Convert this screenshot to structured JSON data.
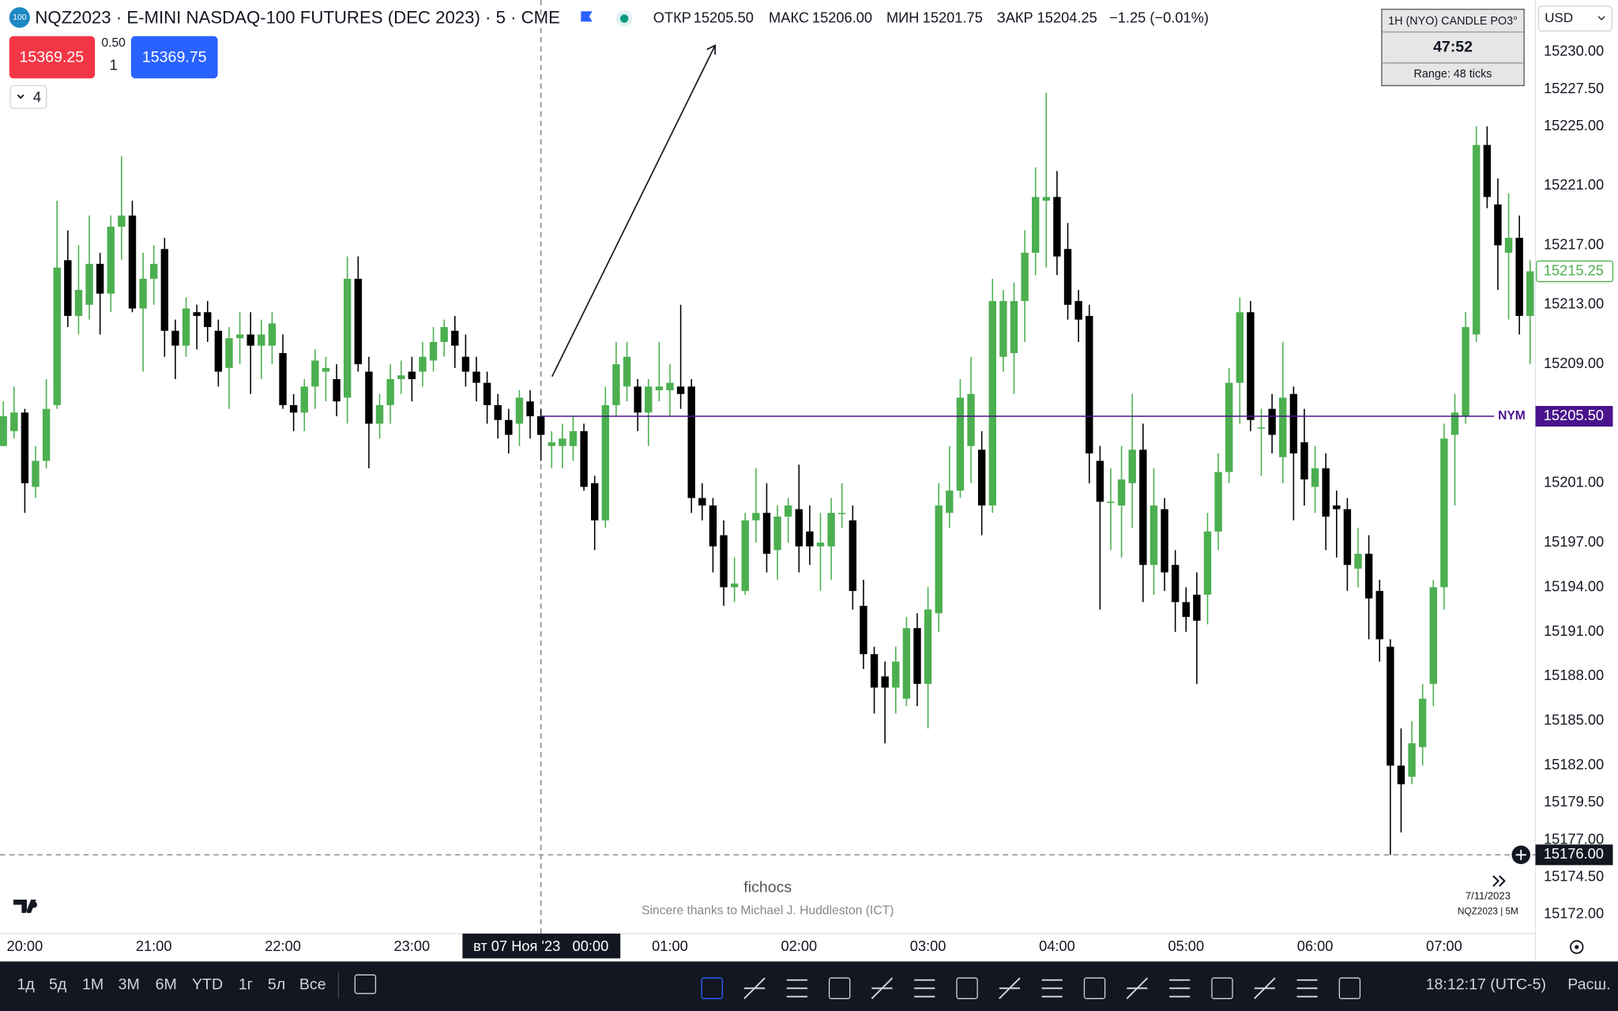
{
  "header": {
    "logo": "100",
    "symbol": "NQZ2023 · E-MINI NASDAQ-100 FUTURES (DEC 2023) · 5 · CME",
    "ohlc": [
      {
        "label": "ОТКР",
        "value": "15205.50"
      },
      {
        "label": "МАКС",
        "value": "15206.00"
      },
      {
        "label": "МИН",
        "value": "15201.75"
      },
      {
        "label": "ЗАКР",
        "value": "15204.25"
      }
    ],
    "change": "−1.25 (−0.01%)"
  },
  "trade": {
    "sell": "15369.25",
    "spread": "0.50",
    "qty": "1",
    "buy": "15369.75"
  },
  "indicators": "4",
  "candle_box": {
    "title": "1H (NYO) CANDLE PO3°",
    "timer": "47:52",
    "range": "Range: 48 ticks"
  },
  "currency": "USD",
  "watermark": {
    "title": "fichocs",
    "subtitle": "Sincere thanks to Michael J. Huddleston (ICT)"
  },
  "corner": {
    "date": "7/11/2023",
    "symbol": "NQZ2023 | 5M"
  },
  "bottom": {
    "ranges": [
      "1д",
      "5д",
      "1М",
      "3М",
      "6М",
      "YTD",
      "1г",
      "5л",
      "Все"
    ],
    "clock": "18:12:17 (UTC-5)",
    "scale": "Расш."
  },
  "chart_data": {
    "type": "candlestick",
    "up_color": "#4caf50",
    "down_color": "#000000",
    "grid": false,
    "categories": [
      null,
      null,
      "20:00",
      null,
      null,
      null,
      null,
      null,
      null,
      null,
      null,
      null,
      null,
      null,
      "21:00",
      null,
      null,
      null,
      null,
      null,
      null,
      null,
      null,
      null,
      null,
      null,
      "22:00",
      null,
      null,
      null,
      null,
      null,
      null,
      null,
      null,
      null,
      null,
      null,
      "23:00",
      null,
      null,
      null,
      null,
      null,
      null,
      null,
      null,
      null,
      null,
      null,
      null,
      null,
      null,
      null,
      null,
      null,
      null,
      null,
      null,
      null,
      null,
      null,
      "01:00",
      null,
      null,
      null,
      null,
      null,
      null,
      null,
      null,
      null,
      null,
      null,
      "02:00",
      null,
      null,
      null,
      null,
      null,
      null,
      null,
      null,
      null,
      null,
      null,
      "03:00",
      null,
      null,
      null,
      null,
      null,
      null,
      null,
      null,
      null,
      null,
      null,
      "04:00",
      null,
      null,
      null,
      null,
      null,
      null,
      null,
      null,
      null,
      null,
      null,
      "05:00",
      null,
      null,
      null,
      null,
      null,
      null,
      null,
      null,
      null,
      null,
      null,
      "06:00",
      null,
      null,
      null,
      null,
      null,
      null,
      null,
      null,
      null,
      null,
      null,
      "07:00",
      null,
      null,
      null,
      null,
      null,
      null,
      null,
      null
    ],
    "open": [
      15203.5,
      15204.5,
      15205.75,
      15200.75,
      15202.5,
      15206.25,
      15216,
      15212.25,
      15213,
      15215.75,
      15213.75,
      15218.25,
      15219,
      15212.75,
      15214.75,
      15216.75,
      15211.25,
      15210.25,
      15212.5,
      15212.5,
      15211.25,
      15208.75,
      15210.75,
      15211,
      15210.25,
      15210.25,
      15209.75,
      15206.25,
      15205.75,
      15207.5,
      15208.5,
      15208,
      15206.75,
      15214.75,
      15208.5,
      15205,
      15206.25,
      15208,
      15208.5,
      15208.5,
      15209.25,
      15210.5,
      15211.25,
      15209.5,
      15208.5,
      15207.75,
      15206.25,
      15205.25,
      15205,
      15206.5,
      15205.5,
      15203.5,
      15203.5,
      15203.5,
      15204.5,
      15201,
      15198.5,
      15206.25,
      15207.5,
      15207.5,
      15205.75,
      15207.25,
      15207.25,
      15207.5,
      15207.5,
      15200,
      15199.5,
      15197.5,
      15194,
      15193.75,
      15198.5,
      15199,
      15196.5,
      15198.75,
      15199.25,
      15197.75,
      15196.75,
      15196.75,
      15199,
      15198.5,
      15192.75,
      15189.5,
      15188,
      15187.25,
      15186.5,
      15191.25,
      15187.5,
      15192.25,
      15199,
      15200.5,
      15203.5,
      15203.25,
      15199.5,
      15209.5,
      15209.75,
      15213.25,
      15216.5,
      15220,
      15220.25,
      15216.75,
      15213.25,
      15212.25,
      15202.5,
      15199.75,
      15199.5,
      15201,
      15203.25,
      15195.5,
      15199.25,
      15195.5,
      15193,
      15193.5,
      15193.5,
      15197.75,
      15201.75,
      15207.75,
      15212.5,
      15204.75,
      15206,
      15202.75,
      15207,
      15203.75,
      15200.75,
      15202,
      15199.5,
      15199.25,
      15195.25,
      15196.25,
      15193.75,
      15190,
      15182,
      15181.25,
      15183.25,
      15187.5,
      15194,
      15204.25,
      15205.5,
      15211,
      15223.75,
      15219.75,
      15216.5,
      15217.5,
      15212.25
    ],
    "high": [
      15206.5,
      15207.5,
      15206,
      15203.5,
      15208,
      15220,
      15218,
      15217,
      15219,
      15216.5,
      15219,
      15223,
      15220,
      15216.5,
      15217,
      15217.5,
      15212,
      15213.5,
      15213,
      15213.25,
      15212,
      15211.5,
      15212.5,
      15212.5,
      15212,
      15212.5,
      15211,
      15207,
      15208,
      15210,
      15209.5,
      15209,
      15216.25,
      15216.25,
      15209.5,
      15207,
      15209,
      15209.25,
      15209.5,
      15210.5,
      15211.5,
      15212,
      15212.25,
      15211,
      15209.5,
      15208.5,
      15207,
      15206,
      15207.25,
      15207.25,
      15206,
      15204.5,
      15205,
      15205.5,
      15205,
      15201.5,
      15207.5,
      15210.5,
      15210.5,
      15208,
      15208,
      15210.5,
      15209,
      15213,
      15208,
      15201,
      15200,
      15198.5,
      15196,
      15199,
      15202,
      15201,
      15199.5,
      15200,
      15202.25,
      15199.5,
      15199,
      15200,
      15201,
      15199.5,
      15194.5,
      15190,
      15189,
      15190,
      15192,
      15192.25,
      15194,
      15201,
      15203.5,
      15208,
      15209.5,
      15204.5,
      15214.75,
      15214,
      15214.5,
      15218,
      15222.25,
      15227.25,
      15222,
      15218.5,
      15214,
      15213,
      15203.5,
      15202,
      15203.5,
      15207,
      15205,
      15202,
      15200,
      15196.5,
      15194,
      15195,
      15199,
      15203,
      15208.75,
      15213.5,
      15213.25,
      15206,
      15207,
      15210.5,
      15207.5,
      15206,
      15203.5,
      15203,
      15200.5,
      15200,
      15198,
      15197.5,
      15194.5,
      15190.5,
      15184.5,
      15185,
      15187.5,
      15194.5,
      15205,
      15207,
      15212.5,
      15225,
      15225,
      15221.5,
      15220.5,
      15219,
      15216
    ],
    "low": [
      15203.5,
      15204,
      15199,
      15200,
      15202,
      15206,
      15211.5,
      15211,
      15212,
      15211,
      15212.5,
      15216,
      15212.5,
      15208.5,
      15213,
      15209.5,
      15208,
      15209.5,
      15210,
      15210.5,
      15207.5,
      15206,
      15209,
      15207,
      15208,
      15209,
      15206,
      15204.5,
      15204.5,
      15206,
      15206.5,
      15205.5,
      15205,
      15208.5,
      15202,
      15204,
      15205,
      15207,
      15206.5,
      15207.5,
      15208.5,
      15209.5,
      15208.75,
      15207.5,
      15206.5,
      15205,
      15204,
      15203,
      15203.5,
      15204,
      15202.5,
      15202,
      15202,
      15202.5,
      15200.5,
      15196.5,
      15198,
      15205.5,
      15206.5,
      15204.5,
      15203.5,
      15206.5,
      15205.5,
      15206,
      15199,
      15198.5,
      15195,
      15192.75,
      15193,
      15193.5,
      15197,
      15195,
      15194.5,
      15197,
      15195,
      15195.5,
      15193.75,
      15194.5,
      15198,
      15192.5,
      15188.5,
      15185.5,
      15183.5,
      15185.5,
      15186,
      15186,
      15184.5,
      15191,
      15198,
      15200,
      15201,
      15197.5,
      15199,
      15208.5,
      15207,
      15210.5,
      15215,
      15215.5,
      15215,
      15212,
      15210.5,
      15201,
      15192.5,
      15196.5,
      15196,
      15198,
      15193,
      15193.5,
      15193.75,
      15191,
      15191,
      15187.5,
      15191.5,
      15196.5,
      15201,
      15205,
      15204.5,
      15201.5,
      15203,
      15201,
      15198.5,
      15199.5,
      15199,
      15196.5,
      15196,
      15193.75,
      15194,
      15190.5,
      15189,
      15176,
      15177.5,
      15180.75,
      15182,
      15186,
      15192.5,
      15199.5,
      15205,
      15210.5,
      15219.5,
      15214,
      15212,
      15211,
      15209
    ],
    "close": [
      15205.5,
      15205.75,
      15201,
      15202.5,
      15206,
      15215.5,
      15212.25,
      15214,
      15215.75,
      15213.75,
      15218.25,
      15219,
      15212.75,
      15214.75,
      15215.75,
      15211.25,
      15210.25,
      15212.75,
      15212.25,
      15211.5,
      15208.5,
      15210.75,
      15211,
      15210.25,
      15211,
      15211.75,
      15206.25,
      15205.75,
      15207.5,
      15209.25,
      15208.75,
      15206.5,
      15214.75,
      15209,
      15205,
      15206.25,
      15208,
      15208.25,
      15208,
      15209.5,
      15210.5,
      15211.5,
      15210.25,
      15208.5,
      15207.75,
      15206.25,
      15205.25,
      15204.25,
      15206.75,
      15205.5,
      15204.25,
      15203.75,
      15204,
      15204.5,
      15200.75,
      15198.5,
      15206.25,
      15209,
      15209.5,
      15205.75,
      15207.5,
      15207.5,
      15207.75,
      15207,
      15200,
      15199.5,
      15196.75,
      15194,
      15194.25,
      15198.5,
      15199,
      15196.25,
      15198.75,
      15199.5,
      15196.75,
      15196.75,
      15197,
      15199,
      15199,
      15193.75,
      15189.5,
      15187.25,
      15187.25,
      15189,
      15191.25,
      15187.5,
      15192.5,
      15199.5,
      15200.5,
      15206.75,
      15207,
      15199.5,
      15213.25,
      15213.25,
      15213.25,
      15216.5,
      15220.25,
      15220.25,
      15216.25,
      15213,
      15212,
      15203,
      15199.75,
      15199.75,
      15201.25,
      15203.25,
      15195.5,
      15199.5,
      15195,
      15193,
      15192,
      15191.75,
      15197.75,
      15201.75,
      15207.75,
      15212.5,
      15205.25,
      15204.75,
      15204.25,
      15206.75,
      15203,
      15201.25,
      15202,
      15198.75,
      15199.25,
      15195.5,
      15196.25,
      15193.25,
      15190.5,
      15182,
      15180.75,
      15183.5,
      15186.5,
      15194,
      15204,
      15205.75,
      15211.5,
      15223.75,
      15220.25,
      15217,
      15217.5,
      15212.25,
      15215.25
    ],
    "ylim": [
      15170.7,
      15233.5
    ],
    "yticks": [
      {
        "value": 15230,
        "label": "15230.00"
      },
      {
        "value": 15227.5,
        "label": "15227.50"
      },
      {
        "value": 15225,
        "label": "15225.00"
      },
      {
        "value": 15221,
        "label": "15221.00"
      },
      {
        "value": 15217,
        "label": "15217.00"
      },
      {
        "value": 15213,
        "label": "15213.00"
      },
      {
        "value": 15209,
        "label": "15209.00"
      },
      {
        "value": 15201,
        "label": "15201.00"
      },
      {
        "value": 15197,
        "label": "15197.00"
      },
      {
        "value": 15194,
        "label": "15194.00"
      },
      {
        "value": 15191,
        "label": "15191.00"
      },
      {
        "value": 15188,
        "label": "15188.00"
      },
      {
        "value": 15185,
        "label": "15185.00"
      },
      {
        "value": 15182,
        "label": "15182.00"
      },
      {
        "value": 15179.5,
        "label": "15179.50"
      },
      {
        "value": 15177,
        "label": "15177.00"
      },
      {
        "value": 15174.5,
        "label": "15174.50"
      },
      {
        "value": 15172,
        "label": "15172.00"
      }
    ],
    "price_line": {
      "name": "NYM",
      "value": 15205.5,
      "label": "15205.50",
      "color": "#4a148c"
    },
    "last_price": 15215.25,
    "crosshair": {
      "value": 15176,
      "label": "15176.00",
      "time": "вт 07 Ноя '23   00:00"
    }
  }
}
